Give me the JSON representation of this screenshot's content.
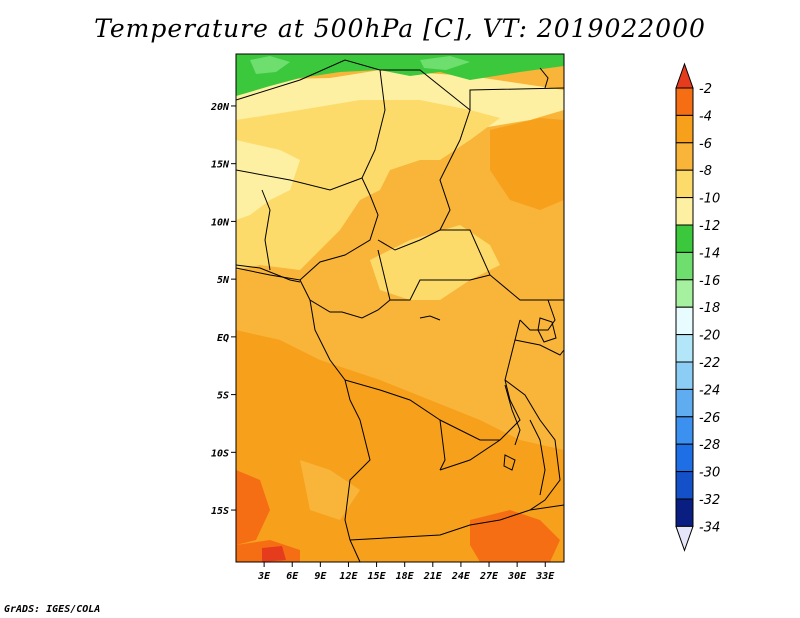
{
  "title": "Temperature at 500hPa [C], VT: 2019022000",
  "credit": "GrADS: IGES/COLA",
  "map": {
    "x_ticks": [
      "3E",
      "6E",
      "9E",
      "12E",
      "15E",
      "18E",
      "21E",
      "24E",
      "27E",
      "30E",
      "33E"
    ],
    "y_ticks": [
      "20N",
      "15N",
      "10N",
      "5N",
      "EQ",
      "5S",
      "10S",
      "15S"
    ],
    "lon_range": [
      0,
      35
    ],
    "lat_range": [
      -19.5,
      24.5
    ]
  },
  "colorbar": {
    "labels": [
      "-2",
      "-4",
      "-6",
      "-8",
      "-10",
      "-12",
      "-14",
      "-16",
      "-18",
      "-20",
      "-22",
      "-24",
      "-26",
      "-28",
      "-30",
      "-32",
      "-34"
    ],
    "colors": [
      "#e63c1e",
      "#f56e14",
      "#f7a01c",
      "#f9b43a",
      "#fddb6b",
      "#fdf0a2",
      "#3cc83c",
      "#6ede6e",
      "#a6f1a0",
      "#e8fcff",
      "#b4e6fa",
      "#8ccdf5",
      "#5fadf0",
      "#3c90f0",
      "#1e6ee6",
      "#1450c8",
      "#0a1e82",
      "#e6e6fa"
    ]
  }
}
